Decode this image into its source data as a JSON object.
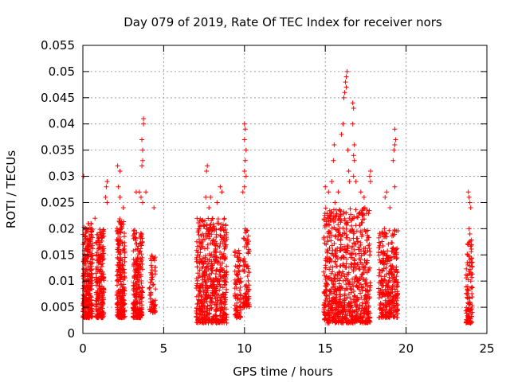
{
  "chart_data": {
    "type": "scatter",
    "title": "Day 079 of 2019, Rate Of TEC Index for receiver nors",
    "xlabel": "GPS time / hours",
    "ylabel": "ROTI / TECUs",
    "xlim": [
      0,
      25
    ],
    "ylim": [
      0,
      0.055
    ],
    "x_ticks": [
      0,
      5,
      10,
      15,
      20,
      25
    ],
    "x_tick_labels": [
      "0",
      "5",
      "10",
      "15",
      "20",
      "25"
    ],
    "y_ticks": [
      0,
      0.005,
      0.01,
      0.015,
      0.02,
      0.025,
      0.03,
      0.035,
      0.04,
      0.045,
      0.05,
      0.055
    ],
    "y_tick_labels": [
      "0",
      "0.005",
      "0.01",
      "0.015",
      "0.02",
      "0.025",
      "0.03",
      "0.035",
      "0.04",
      "0.045",
      "0.05",
      "0.055"
    ],
    "grid": true,
    "marker": "+",
    "color": "#ff0000",
    "series": [
      {
        "name": "ROTI",
        "clusters": [
          {
            "x_range": [
              0.0,
              0.6
            ],
            "y_range": [
              0.003,
              0.021
            ],
            "count": 320
          },
          {
            "x_range": [
              0.8,
              1.3
            ],
            "y_range": [
              0.003,
              0.02
            ],
            "count": 220
          },
          {
            "x_range": [
              2.1,
              2.6
            ],
            "y_range": [
              0.003,
              0.022
            ],
            "count": 230
          },
          {
            "x_range": [
              3.1,
              3.7
            ],
            "y_range": [
              0.003,
              0.02
            ],
            "count": 230
          },
          {
            "x_range": [
              4.1,
              4.5
            ],
            "y_range": [
              0.004,
              0.015
            ],
            "count": 70
          },
          {
            "x_range": [
              7.0,
              8.9
            ],
            "y_range": [
              0.002,
              0.022
            ],
            "count": 600
          },
          {
            "x_range": [
              9.4,
              9.8
            ],
            "y_range": [
              0.003,
              0.016
            ],
            "count": 90
          },
          {
            "x_range": [
              9.9,
              10.3
            ],
            "y_range": [
              0.005,
              0.02
            ],
            "count": 90
          },
          {
            "x_range": [
              14.9,
              17.8
            ],
            "y_range": [
              0.002,
              0.024
            ],
            "count": 800
          },
          {
            "x_range": [
              18.3,
              19.5
            ],
            "y_range": [
              0.003,
              0.02
            ],
            "count": 320
          },
          {
            "x_range": [
              23.7,
              24.1
            ],
            "y_range": [
              0.002,
              0.018
            ],
            "count": 110
          }
        ],
        "outliers": [
          [
            0.05,
            0.03
          ],
          [
            0.5,
            0.021
          ],
          [
            0.75,
            0.022
          ],
          [
            1.4,
            0.026
          ],
          [
            1.45,
            0.028
          ],
          [
            1.5,
            0.029
          ],
          [
            1.5,
            0.025
          ],
          [
            2.15,
            0.032
          ],
          [
            2.3,
            0.031
          ],
          [
            2.2,
            0.028
          ],
          [
            2.3,
            0.026
          ],
          [
            2.5,
            0.024
          ],
          [
            3.3,
            0.027
          ],
          [
            3.5,
            0.027
          ],
          [
            3.6,
            0.026
          ],
          [
            3.75,
            0.041
          ],
          [
            3.75,
            0.04
          ],
          [
            3.65,
            0.037
          ],
          [
            3.7,
            0.035
          ],
          [
            3.7,
            0.033
          ],
          [
            3.65,
            0.032
          ],
          [
            3.7,
            0.025
          ],
          [
            3.9,
            0.027
          ],
          [
            4.4,
            0.024
          ],
          [
            7.7,
            0.032
          ],
          [
            7.65,
            0.031
          ],
          [
            7.6,
            0.026
          ],
          [
            7.9,
            0.026
          ],
          [
            8.5,
            0.028
          ],
          [
            8.6,
            0.027
          ],
          [
            8.3,
            0.025
          ],
          [
            7.8,
            0.024
          ],
          [
            10.0,
            0.04
          ],
          [
            10.05,
            0.039
          ],
          [
            10.0,
            0.037
          ],
          [
            10.1,
            0.035
          ],
          [
            10.05,
            0.033
          ],
          [
            10.0,
            0.031
          ],
          [
            10.1,
            0.03
          ],
          [
            10.0,
            0.028
          ],
          [
            9.9,
            0.027
          ],
          [
            15.0,
            0.028
          ],
          [
            15.2,
            0.027
          ],
          [
            15.4,
            0.029
          ],
          [
            15.5,
            0.033
          ],
          [
            15.55,
            0.036
          ],
          [
            15.6,
            0.025
          ],
          [
            15.8,
            0.027
          ],
          [
            16.0,
            0.038
          ],
          [
            16.1,
            0.04
          ],
          [
            16.15,
            0.045
          ],
          [
            16.2,
            0.046
          ],
          [
            16.25,
            0.048
          ],
          [
            16.3,
            0.049
          ],
          [
            16.35,
            0.05
          ],
          [
            16.3,
            0.047
          ],
          [
            16.4,
            0.035
          ],
          [
            16.45,
            0.031
          ],
          [
            16.5,
            0.029
          ],
          [
            16.7,
            0.044
          ],
          [
            16.75,
            0.043
          ],
          [
            16.7,
            0.04
          ],
          [
            16.8,
            0.036
          ],
          [
            16.75,
            0.034
          ],
          [
            16.8,
            0.033
          ],
          [
            16.75,
            0.03
          ],
          [
            16.9,
            0.029
          ],
          [
            17.2,
            0.027
          ],
          [
            17.4,
            0.026
          ],
          [
            17.45,
            0.024
          ],
          [
            17.8,
            0.031
          ],
          [
            17.75,
            0.03
          ],
          [
            17.8,
            0.029
          ],
          [
            18.7,
            0.026
          ],
          [
            18.8,
            0.027
          ],
          [
            19.0,
            0.024
          ],
          [
            19.2,
            0.033
          ],
          [
            19.25,
            0.035
          ],
          [
            19.3,
            0.036
          ],
          [
            19.35,
            0.037
          ],
          [
            19.3,
            0.039
          ],
          [
            19.3,
            0.028
          ],
          [
            23.85,
            0.027
          ],
          [
            23.9,
            0.026
          ],
          [
            23.95,
            0.025
          ],
          [
            24.0,
            0.024
          ],
          [
            23.9,
            0.02
          ],
          [
            23.95,
            0.019
          ]
        ]
      }
    ]
  }
}
